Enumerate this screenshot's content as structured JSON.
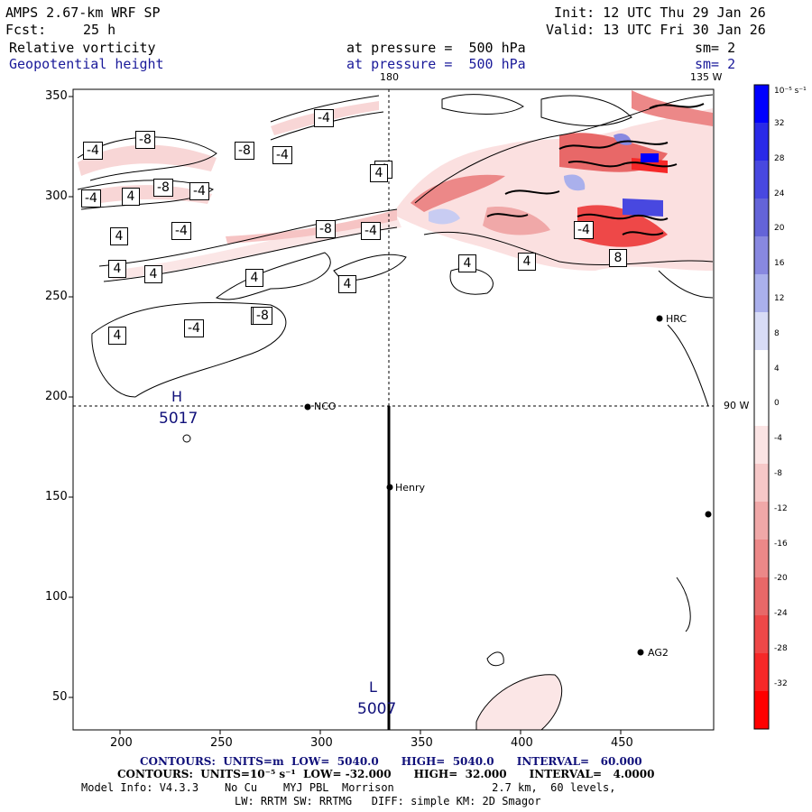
{
  "header": {
    "title": "AMPS 2.67-km WRF SP",
    "forecast_label": "Fcst:",
    "forecast_value": "25 h",
    "init": "Init: 12 UTC Thu 29 Jan 26",
    "valid": "Valid: 13 UTC Fri 30 Jan 26",
    "field1_name": "Relative vorticity",
    "field1_level": "at pressure =  500 hPa",
    "field1_smooth": "sm= 2",
    "field2_name": "Geopotential height",
    "field2_level": "at pressure =  500 hPa",
    "field2_smooth": "sm= 2"
  },
  "map": {
    "meridian_label_top": "180",
    "meridian_label_topright": "135 W",
    "parallel_label_right": "90 W",
    "x_ticks": [
      "200",
      "250",
      "300",
      "350",
      "400",
      "450"
    ],
    "y_ticks": [
      "350",
      "300",
      "250",
      "200",
      "150",
      "100",
      "50"
    ],
    "stations": [
      "NCO",
      "Henry",
      "HRC",
      "AG2"
    ],
    "high_label": "H",
    "high_value": "5017",
    "low_label": "L",
    "low_value": "5007",
    "contour_labels": [
      "-4",
      "-8",
      "-4",
      "-8",
      "-4",
      "4",
      "-4",
      "4",
      "-8",
      "-4",
      "4",
      "-4",
      "4",
      "4",
      "4",
      "4",
      "4",
      "-8",
      "-4",
      "4",
      "4",
      "-4",
      "-8",
      "-4",
      "4",
      "8",
      "4"
    ]
  },
  "colorbar": {
    "units": "10⁻⁵ s⁻¹",
    "labels": [
      "32",
      "28",
      "24",
      "20",
      "16",
      "12",
      "8",
      "4",
      "0",
      "-4",
      "-8",
      "-12",
      "-16",
      "-20",
      "-24",
      "-28",
      "-32"
    ],
    "colors": [
      "#0000ff",
      "#2a2ae8",
      "#4848e0",
      "#6464d8",
      "#8888e0",
      "#aab0ec",
      "#d8dcf6",
      "#ffffff",
      "#ffffff",
      "#fbe4e4",
      "#f6c8c8",
      "#f0a8a8",
      "#ec8888",
      "#e86868",
      "#ee4848",
      "#f62828",
      "#ff0000"
    ]
  },
  "footer": {
    "line1": "CONTOURS:  UNITS=m  LOW=  5040.0      HIGH=  5040.0      INTERVAL=   60.000",
    "line2": "CONTOURS:  UNITS=10⁻⁵ s⁻¹  LOW= -32.000      HIGH=  32.000      INTERVAL=   4.0000",
    "line3": "Model Info: V4.3.3    No Cu    MYJ PBL  Morrison               2.7 km,  60 levels,",
    "line4": "LW: RRTM SW: RRTMG   DIFF: simple KM: 2D Smagor"
  }
}
